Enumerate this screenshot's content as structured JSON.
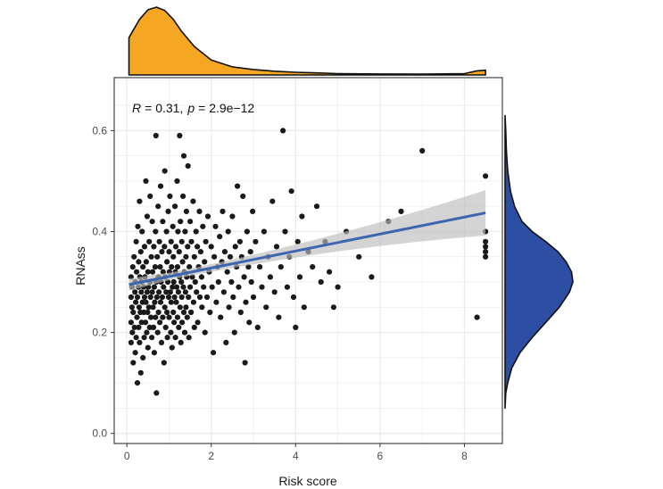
{
  "chart_data": {
    "type": "scatter",
    "xlabel": "Risk score",
    "ylabel": "RNAss",
    "xlim": [
      -0.3,
      8.9
    ],
    "ylim": [
      -0.02,
      0.705
    ],
    "x_ticks": [
      "0",
      "2",
      "4",
      "6",
      "8"
    ],
    "y_ticks": [
      "0.0",
      "0.2",
      "0.4",
      "0.6"
    ],
    "grid": true,
    "annotation": {
      "r_symbol": "R",
      "r_value": "= 0.31,",
      "p_symbol": "p",
      "p_value": "= 2.9e−12"
    },
    "regression": {
      "x_start": 0.05,
      "x_end": 8.5,
      "y_start": 0.295,
      "y_end": 0.437,
      "ci_halfwidth_start": 0.012,
      "ci_halfwidth_mid": 0.007,
      "ci_halfwidth_end": 0.045,
      "color": "#3d66b0",
      "band_color": "#bdbdbd"
    },
    "marginal_x": {
      "type": "density",
      "color": "#f5a623",
      "description": "density of Risk score",
      "x": [
        0.05,
        0.3,
        0.5,
        0.7,
        0.9,
        1.1,
        1.3,
        1.6,
        2.0,
        2.5,
        3.0,
        3.5,
        4.0,
        4.5,
        5.0,
        6.0,
        7.0,
        8.0,
        8.3,
        8.5
      ],
      "density": [
        0.55,
        0.82,
        0.96,
        1.0,
        0.95,
        0.82,
        0.64,
        0.42,
        0.22,
        0.12,
        0.08,
        0.055,
        0.04,
        0.03,
        0.02,
        0.015,
        0.012,
        0.02,
        0.06,
        0.07
      ]
    },
    "marginal_y": {
      "type": "density",
      "color": "#2c4fa3",
      "description": "density of RNAss",
      "y": [
        0.05,
        0.08,
        0.1,
        0.13,
        0.16,
        0.19,
        0.22,
        0.25,
        0.28,
        0.3,
        0.32,
        0.34,
        0.36,
        0.38,
        0.4,
        0.42,
        0.45,
        0.48,
        0.52,
        0.56,
        0.6,
        0.63
      ],
      "density": [
        0.0,
        0.01,
        0.04,
        0.1,
        0.22,
        0.4,
        0.6,
        0.8,
        0.95,
        1.0,
        0.98,
        0.9,
        0.78,
        0.6,
        0.4,
        0.25,
        0.14,
        0.08,
        0.04,
        0.02,
        0.01,
        0.0
      ]
    },
    "points": [
      [
        0.1,
        0.31
      ],
      [
        0.1,
        0.27
      ],
      [
        0.1,
        0.22
      ],
      [
        0.1,
        0.18
      ],
      [
        0.12,
        0.25
      ],
      [
        0.12,
        0.29
      ],
      [
        0.13,
        0.2
      ],
      [
        0.14,
        0.33
      ],
      [
        0.15,
        0.14
      ],
      [
        0.15,
        0.24
      ],
      [
        0.17,
        0.35
      ],
      [
        0.18,
        0.21
      ],
      [
        0.19,
        0.28
      ],
      [
        0.2,
        0.16
      ],
      [
        0.2,
        0.3
      ],
      [
        0.21,
        0.26
      ],
      [
        0.22,
        0.38
      ],
      [
        0.22,
        0.19
      ],
      [
        0.23,
        0.32
      ],
      [
        0.24,
        0.23
      ],
      [
        0.25,
        0.1
      ],
      [
        0.25,
        0.27
      ],
      [
        0.26,
        0.41
      ],
      [
        0.27,
        0.29
      ],
      [
        0.28,
        0.21
      ],
      [
        0.28,
        0.34
      ],
      [
        0.29,
        0.25
      ],
      [
        0.3,
        0.46
      ],
      [
        0.3,
        0.18
      ],
      [
        0.31,
        0.31
      ],
      [
        0.32,
        0.24
      ],
      [
        0.33,
        0.36
      ],
      [
        0.33,
        0.12
      ],
      [
        0.34,
        0.28
      ],
      [
        0.35,
        0.22
      ],
      [
        0.35,
        0.3
      ],
      [
        0.36,
        0.4
      ],
      [
        0.37,
        0.26
      ],
      [
        0.38,
        0.15
      ],
      [
        0.38,
        0.33
      ],
      [
        0.4,
        0.24
      ],
      [
        0.4,
        0.29
      ],
      [
        0.41,
        0.19
      ],
      [
        0.42,
        0.37
      ],
      [
        0.42,
        0.27
      ],
      [
        0.43,
        0.31
      ],
      [
        0.44,
        0.22
      ],
      [
        0.45,
        0.5
      ],
      [
        0.45,
        0.26
      ],
      [
        0.46,
        0.34
      ],
      [
        0.47,
        0.2
      ],
      [
        0.48,
        0.28
      ],
      [
        0.48,
        0.43
      ],
      [
        0.49,
        0.24
      ],
      [
        0.5,
        0.32
      ],
      [
        0.5,
        0.17
      ],
      [
        0.51,
        0.29
      ],
      [
        0.52,
        0.25
      ],
      [
        0.53,
        0.38
      ],
      [
        0.54,
        0.21
      ],
      [
        0.55,
        0.3
      ],
      [
        0.55,
        0.47
      ],
      [
        0.56,
        0.27
      ],
      [
        0.57,
        0.23
      ],
      [
        0.58,
        0.35
      ],
      [
        0.59,
        0.19
      ],
      [
        0.6,
        0.28
      ],
      [
        0.6,
        0.42
      ],
      [
        0.61,
        0.32
      ],
      [
        0.62,
        0.25
      ],
      [
        0.63,
        0.21
      ],
      [
        0.64,
        0.37
      ],
      [
        0.65,
        0.29
      ],
      [
        0.65,
        0.16
      ],
      [
        0.66,
        0.26
      ],
      [
        0.67,
        0.33
      ],
      [
        0.68,
        0.4
      ],
      [
        0.68,
        0.23
      ],
      [
        0.69,
        0.59
      ],
      [
        0.7,
        0.08
      ],
      [
        0.7,
        0.3
      ],
      [
        0.71,
        0.27
      ],
      [
        0.72,
        0.35
      ],
      [
        0.73,
        0.2
      ],
      [
        0.74,
        0.45
      ],
      [
        0.75,
        0.31
      ],
      [
        0.75,
        0.24
      ],
      [
        0.76,
        0.28
      ],
      [
        0.77,
        0.38
      ],
      [
        0.78,
        0.22
      ],
      [
        0.79,
        0.33
      ],
      [
        0.8,
        0.26
      ],
      [
        0.8,
        0.49
      ],
      [
        0.81,
        0.3
      ],
      [
        0.82,
        0.18
      ],
      [
        0.83,
        0.36
      ],
      [
        0.84,
        0.27
      ],
      [
        0.85,
        0.42
      ],
      [
        0.85,
        0.23
      ],
      [
        0.86,
        0.32
      ],
      [
        0.87,
        0.29
      ],
      [
        0.88,
        0.14
      ],
      [
        0.89,
        0.37
      ],
      [
        0.9,
        0.25
      ],
      [
        0.9,
        0.52
      ],
      [
        0.91,
        0.31
      ],
      [
        0.92,
        0.21
      ],
      [
        0.93,
        0.28
      ],
      [
        0.94,
        0.4
      ],
      [
        0.95,
        0.24
      ],
      [
        0.95,
        0.34
      ],
      [
        0.96,
        0.19
      ],
      [
        0.97,
        0.3
      ],
      [
        0.98,
        0.44
      ],
      [
        0.99,
        0.27
      ],
      [
        1.0,
        0.36
      ],
      [
        1.0,
        0.23
      ],
      [
        1.01,
        0.32
      ],
      [
        1.02,
        0.47
      ],
      [
        1.03,
        0.28
      ],
      [
        1.04,
        0.2
      ],
      [
        1.05,
        0.38
      ],
      [
        1.05,
        0.26
      ],
      [
        1.06,
        0.33
      ],
      [
        1.07,
        0.17
      ],
      [
        1.08,
        0.29
      ],
      [
        1.09,
        0.41
      ],
      [
        1.1,
        0.24
      ],
      [
        1.1,
        0.35
      ],
      [
        1.11,
        0.3
      ],
      [
        1.12,
        0.22
      ],
      [
        1.13,
        0.27
      ],
      [
        1.14,
        0.45
      ],
      [
        1.15,
        0.32
      ],
      [
        1.15,
        0.19
      ],
      [
        1.16,
        0.37
      ],
      [
        1.17,
        0.26
      ],
      [
        1.18,
        0.29
      ],
      [
        1.19,
        0.5
      ],
      [
        1.2,
        0.23
      ],
      [
        1.2,
        0.33
      ],
      [
        1.21,
        0.4
      ],
      [
        1.22,
        0.28
      ],
      [
        1.23,
        0.21
      ],
      [
        1.24,
        0.36
      ],
      [
        1.25,
        0.31
      ],
      [
        1.25,
        0.59
      ],
      [
        1.26,
        0.25
      ],
      [
        1.27,
        0.42
      ],
      [
        1.28,
        0.18
      ],
      [
        1.29,
        0.3
      ],
      [
        1.3,
        0.27
      ],
      [
        1.3,
        0.38
      ],
      [
        1.31,
        0.22
      ],
      [
        1.32,
        0.34
      ],
      [
        1.33,
        0.47
      ],
      [
        1.34,
        0.29
      ],
      [
        1.35,
        0.24
      ],
      [
        1.35,
        0.55
      ],
      [
        1.36,
        0.32
      ],
      [
        1.37,
        0.2
      ],
      [
        1.38,
        0.4
      ],
      [
        1.39,
        0.28
      ],
      [
        1.4,
        0.35
      ],
      [
        1.4,
        0.25
      ],
      [
        1.41,
        0.44
      ],
      [
        1.42,
        0.31
      ],
      [
        1.43,
        0.23
      ],
      [
        1.44,
        0.37
      ],
      [
        1.45,
        0.53
      ],
      [
        1.46,
        0.27
      ],
      [
        1.47,
        0.19
      ],
      [
        1.48,
        0.33
      ],
      [
        1.5,
        0.42
      ],
      [
        1.5,
        0.29
      ],
      [
        1.52,
        0.24
      ],
      [
        1.53,
        0.38
      ],
      [
        1.55,
        0.31
      ],
      [
        1.57,
        0.46
      ],
      [
        1.58,
        0.26
      ],
      [
        1.6,
        0.35
      ],
      [
        1.6,
        0.21
      ],
      [
        1.62,
        0.3
      ],
      [
        1.64,
        0.4
      ],
      [
        1.65,
        0.28
      ],
      [
        1.67,
        0.37
      ],
      [
        1.68,
        0.22
      ],
      [
        1.7,
        0.33
      ],
      [
        1.72,
        0.44
      ],
      [
        1.73,
        0.27
      ],
      [
        1.75,
        0.36
      ],
      [
        1.77,
        0.31
      ],
      [
        1.78,
        0.25
      ],
      [
        1.8,
        0.41
      ],
      [
        1.82,
        0.29
      ],
      [
        1.84,
        0.34
      ],
      [
        1.85,
        0.2
      ],
      [
        1.87,
        0.38
      ],
      [
        1.9,
        0.27
      ],
      [
        1.92,
        0.43
      ],
      [
        1.95,
        0.32
      ],
      [
        1.97,
        0.24
      ],
      [
        2.0,
        0.37
      ],
      [
        2.02,
        0.29
      ],
      [
        2.05,
        0.16
      ],
      [
        2.07,
        0.35
      ],
      [
        2.1,
        0.41
      ],
      [
        2.12,
        0.26
      ],
      [
        2.15,
        0.33
      ],
      [
        2.17,
        0.3
      ],
      [
        2.2,
        0.39
      ],
      [
        2.22,
        0.23
      ],
      [
        2.25,
        0.34
      ],
      [
        2.27,
        0.44
      ],
      [
        2.3,
        0.28
      ],
      [
        2.32,
        0.36
      ],
      [
        2.35,
        0.18
      ],
      [
        2.38,
        0.32
      ],
      [
        2.4,
        0.4
      ],
      [
        2.42,
        0.25
      ],
      [
        2.45,
        0.35
      ],
      [
        2.48,
        0.3
      ],
      [
        2.5,
        0.43
      ],
      [
        2.52,
        0.27
      ],
      [
        2.55,
        0.2
      ],
      [
        2.57,
        0.37
      ],
      [
        2.6,
        0.33
      ],
      [
        2.62,
        0.49
      ],
      [
        2.65,
        0.29
      ],
      [
        2.68,
        0.38
      ],
      [
        2.7,
        0.24
      ],
      [
        2.72,
        0.35
      ],
      [
        2.75,
        0.47
      ],
      [
        2.78,
        0.31
      ],
      [
        2.8,
        0.14
      ],
      [
        2.82,
        0.26
      ],
      [
        2.85,
        0.4
      ],
      [
        2.88,
        0.33
      ],
      [
        2.9,
        0.22
      ],
      [
        2.93,
        0.36
      ],
      [
        2.95,
        0.3
      ],
      [
        2.98,
        0.44
      ],
      [
        3.0,
        0.27
      ],
      [
        3.05,
        0.38
      ],
      [
        3.1,
        0.21
      ],
      [
        3.15,
        0.33
      ],
      [
        3.2,
        0.29
      ],
      [
        3.25,
        0.4
      ],
      [
        3.3,
        0.25
      ],
      [
        3.35,
        0.35
      ],
      [
        3.4,
        0.31
      ],
      [
        3.45,
        0.46
      ],
      [
        3.5,
        0.28
      ],
      [
        3.55,
        0.37
      ],
      [
        3.6,
        0.23
      ],
      [
        3.65,
        0.33
      ],
      [
        3.7,
        0.6
      ],
      [
        3.75,
        0.4
      ],
      [
        3.8,
        0.29
      ],
      [
        3.85,
        0.35
      ],
      [
        3.9,
        0.48
      ],
      [
        3.95,
        0.27
      ],
      [
        4.0,
        0.21
      ],
      [
        4.05,
        0.38
      ],
      [
        4.1,
        0.31
      ],
      [
        4.15,
        0.43
      ],
      [
        4.2,
        0.25
      ],
      [
        4.3,
        0.36
      ],
      [
        4.4,
        0.33
      ],
      [
        4.5,
        0.45
      ],
      [
        4.6,
        0.3
      ],
      [
        4.7,
        0.38
      ],
      [
        4.8,
        0.32
      ],
      [
        4.9,
        0.25
      ],
      [
        5.0,
        0.29
      ],
      [
        5.2,
        0.4
      ],
      [
        5.5,
        0.35
      ],
      [
        5.8,
        0.31
      ],
      [
        6.2,
        0.42
      ],
      [
        6.5,
        0.44
      ],
      [
        7.0,
        0.56
      ],
      [
        8.3,
        0.23
      ],
      [
        8.5,
        0.51
      ],
      [
        8.5,
        0.4
      ],
      [
        8.5,
        0.38
      ],
      [
        8.5,
        0.37
      ],
      [
        8.5,
        0.36
      ],
      [
        8.5,
        0.35
      ]
    ]
  }
}
